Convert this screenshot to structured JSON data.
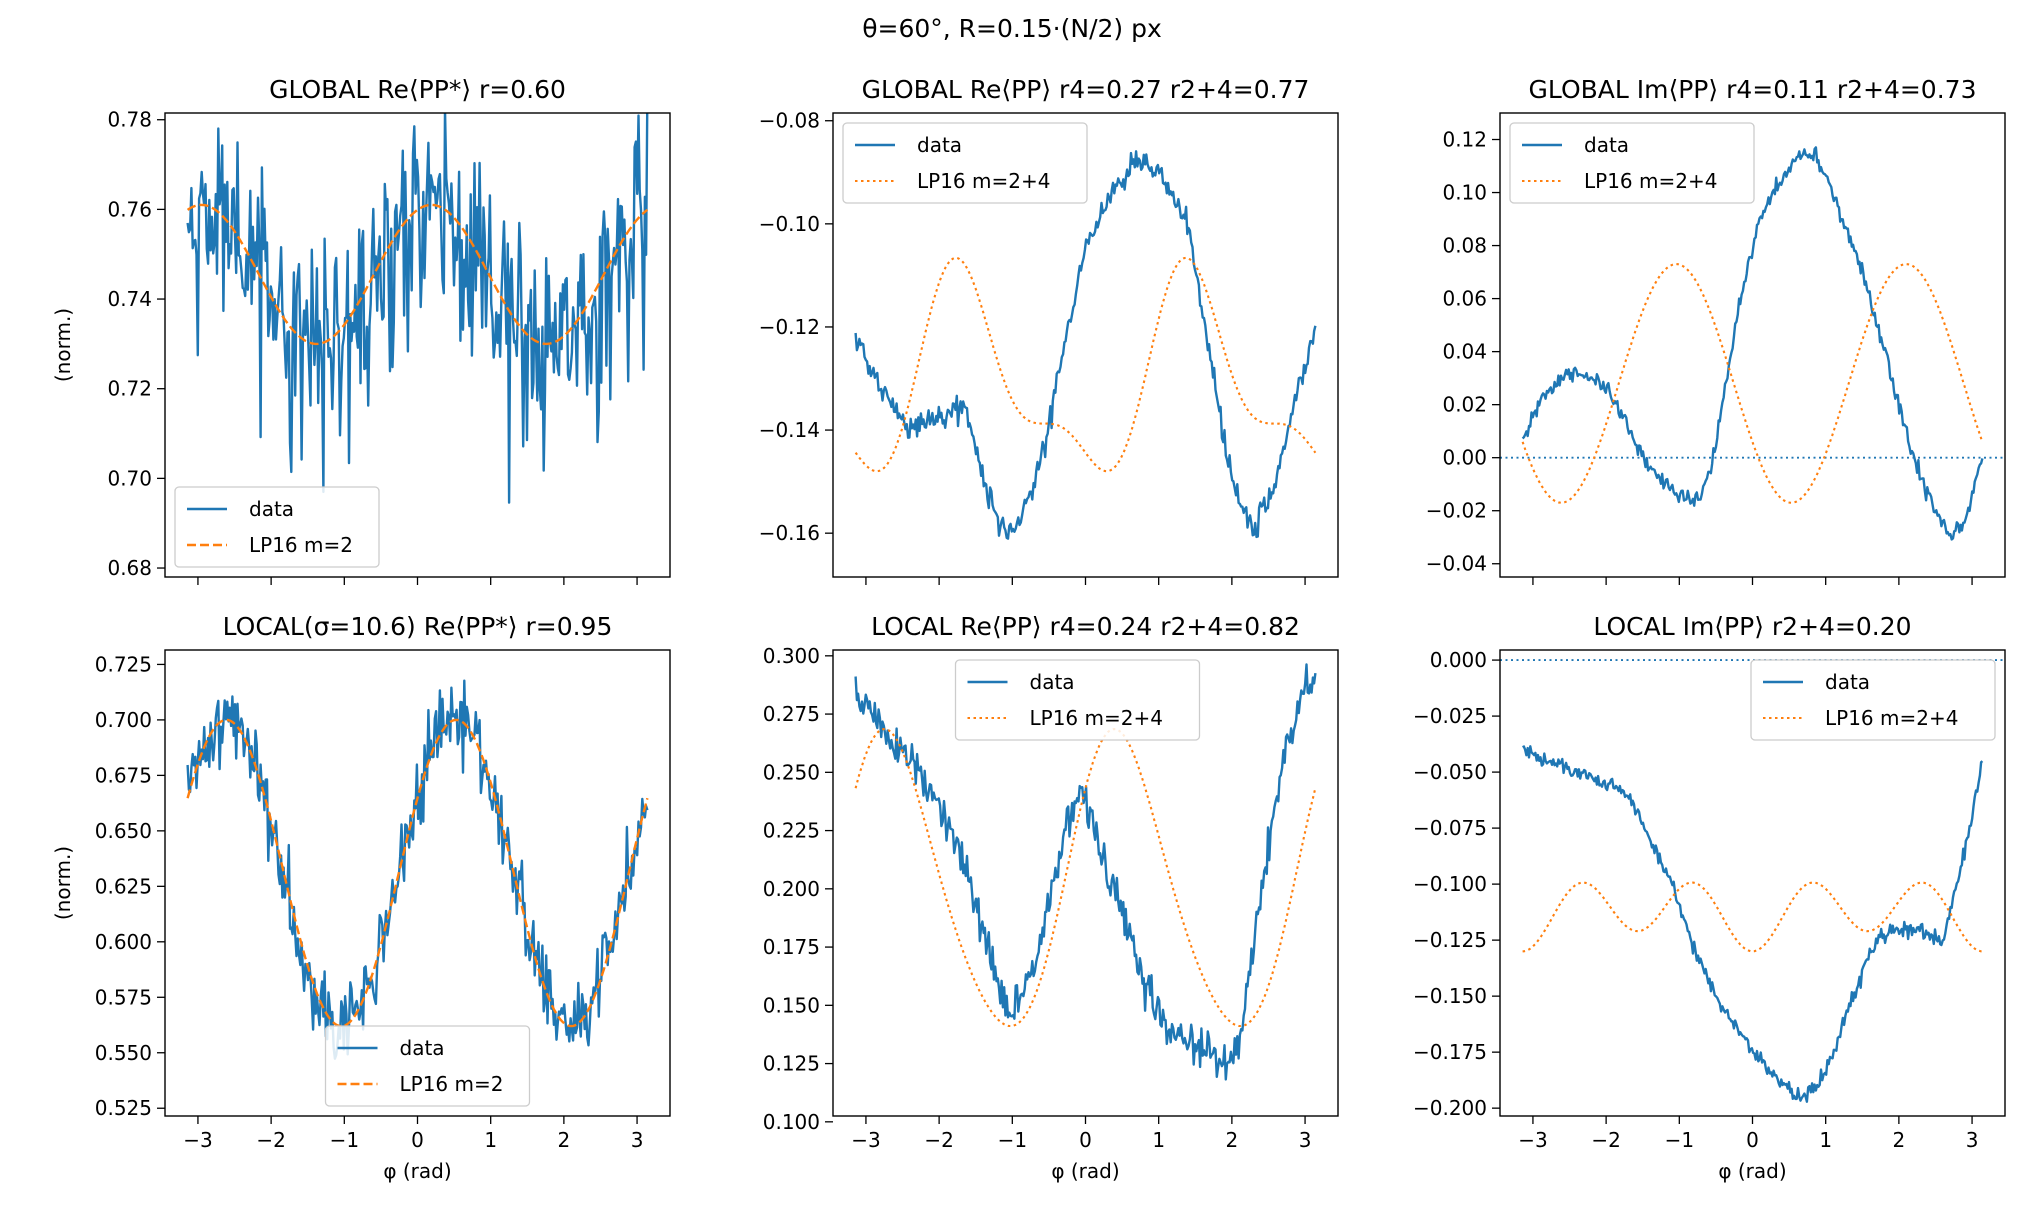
{
  "figure": {
    "suptitle": "θ=60°,  R=0.15·(N/2) px"
  },
  "colors": {
    "data": "#1f77b4",
    "fit": "#ff7f0e",
    "zero_line": "#1f77b4"
  },
  "chart_data": [
    {
      "type": "line",
      "title": "GLOBAL Re⟨PP*⟩  r=0.60",
      "xlabel": "",
      "ylabel": "(norm.)",
      "xlim": [
        -3.45,
        3.45
      ],
      "ylim": [
        0.678,
        0.7815
      ],
      "xticks": [
        -3,
        -2,
        -1,
        0,
        1,
        2,
        3
      ],
      "show_xticklabels": false,
      "yticks": [
        0.68,
        0.7,
        0.72,
        0.74,
        0.76,
        0.78
      ],
      "ytick_labels": [
        "0.68",
        "0.70",
        "0.72",
        "0.74",
        "0.76",
        "0.78"
      ],
      "legend": {
        "placement": "lower-left",
        "entries": [
          {
            "label": "data",
            "style": "solid"
          },
          {
            "label": "LP16 m=2",
            "style": "dashed"
          }
        ]
      },
      "zero_line": false,
      "series": [
        {
          "label": "data",
          "style": "solid",
          "gen": {
            "kind": "sum",
            "c": 0.7455,
            "terms": [
              [
                2,
                0.0155,
                0.19
              ]
            ],
            "noise": 0.0105,
            "spike_prob": 0.09,
            "spike_amp": -0.04,
            "seed": 11
          }
        },
        {
          "label": "LP16 m=2",
          "style": "dashed",
          "gen": {
            "kind": "sum",
            "c": 0.7455,
            "terms": [
              [
                2,
                0.0155,
                0.19
              ]
            ]
          }
        }
      ]
    },
    {
      "type": "line",
      "title": "GLOBAL Re⟨PP⟩  r4=0.27  r2+4=0.77",
      "xlabel": "",
      "ylabel": "",
      "xlim": [
        -3.45,
        3.45
      ],
      "ylim": [
        -0.1685,
        -0.0785
      ],
      "xticks": [
        -3,
        -2,
        -1,
        0,
        1,
        2,
        3
      ],
      "show_xticklabels": false,
      "yticks": [
        -0.16,
        -0.14,
        -0.12,
        -0.1,
        -0.08
      ],
      "ytick_labels": [
        "−0.16",
        "−0.14",
        "−0.12",
        "−0.10",
        "−0.08"
      ],
      "legend": {
        "placement": "upper-left",
        "entries": [
          {
            "label": "data",
            "style": "solid"
          },
          {
            "label": "LP16 m=2+4",
            "style": "dotted"
          }
        ]
      },
      "zero_line": false,
      "series": [
        {
          "label": "data",
          "style": "solid",
          "gen": {
            "kind": "pts",
            "x": [
              -3.14,
              -2.8,
              -2.4,
              -2.0,
              -1.65,
              -1.4,
              -1.1,
              -0.9,
              -0.6,
              -0.3,
              0.0,
              0.3,
              0.7,
              1.0,
              1.4,
              1.7,
              2.0,
              2.3,
              2.6,
              2.9,
              3.14
            ],
            "y": [
              -0.122,
              -0.132,
              -0.14,
              -0.137,
              -0.135,
              -0.15,
              -0.16,
              -0.158,
              -0.145,
              -0.125,
              -0.105,
              -0.095,
              -0.088,
              -0.09,
              -0.1,
              -0.125,
              -0.15,
              -0.16,
              -0.15,
              -0.132,
              -0.121
            ],
            "noise": 0.0012,
            "seed": 21
          }
        },
        {
          "label": "LP16 m=2+4",
          "style": "dotted",
          "gen": {
            "kind": "sum",
            "c": -0.131,
            "terms": [
              [
                2,
                -0.0175,
                -0.095
              ],
              [
                4,
                0.0075,
                -0.26
              ]
            ]
          }
        }
      ]
    },
    {
      "type": "line",
      "title": "GLOBAL Im⟨PP⟩  r4=0.11  r2+4=0.73",
      "xlabel": "",
      "ylabel": "",
      "xlim": [
        -3.45,
        3.45
      ],
      "ylim": [
        -0.045,
        0.13
      ],
      "xticks": [
        -3,
        -2,
        -1,
        0,
        1,
        2,
        3
      ],
      "show_xticklabels": false,
      "yticks": [
        -0.04,
        -0.02,
        0.0,
        0.02,
        0.04,
        0.06,
        0.08,
        0.1,
        0.12
      ],
      "ytick_labels": [
        "−0.04",
        "−0.02",
        "0.00",
        "0.02",
        "0.04",
        "0.06",
        "0.08",
        "0.10",
        "0.12"
      ],
      "legend": {
        "placement": "upper-left",
        "entries": [
          {
            "label": "data",
            "style": "solid"
          },
          {
            "label": "LP16 m=2+4",
            "style": "dotted"
          }
        ]
      },
      "zero_line": true,
      "series": [
        {
          "label": "data",
          "style": "solid",
          "gen": {
            "kind": "pts",
            "x": [
              -3.14,
              -2.9,
              -2.6,
              -2.4,
              -2.15,
              -1.9,
              -1.5,
              -1.2,
              -0.9,
              -0.7,
              -0.5,
              -0.2,
              0.1,
              0.4,
              0.6,
              0.85,
              1.1,
              1.5,
              1.9,
              2.2,
              2.5,
              2.7,
              2.9,
              3.14
            ],
            "y": [
              0.005,
              0.022,
              0.03,
              0.032,
              0.03,
              0.022,
              0.0,
              -0.01,
              -0.015,
              -0.015,
              0.005,
              0.055,
              0.09,
              0.105,
              0.113,
              0.115,
              0.1,
              0.07,
              0.03,
              0.0,
              -0.02,
              -0.03,
              -0.025,
              0.0
            ],
            "noise": 0.0016,
            "seed": 31
          }
        },
        {
          "label": "LP16 m=2+4",
          "style": "dotted",
          "gen": {
            "kind": "sum",
            "c": 0.028,
            "terms": [
              [
                2,
                0.045,
                2.1
              ]
            ]
          }
        }
      ]
    },
    {
      "type": "line",
      "title": "LOCAL(σ=10.6) Re⟨PP*⟩  r=0.95",
      "xlabel": "φ (rad)",
      "ylabel": "(norm.)",
      "xlim": [
        -3.45,
        3.45
      ],
      "ylim": [
        0.5215,
        0.7315
      ],
      "xticks": [
        -3,
        -2,
        -1,
        0,
        1,
        2,
        3
      ],
      "show_xticklabels": true,
      "xtick_labels": [
        "−3",
        "−2",
        "−1",
        "0",
        "1",
        "2",
        "3"
      ],
      "yticks": [
        0.525,
        0.55,
        0.575,
        0.6,
        0.625,
        0.65,
        0.675,
        0.7,
        0.725
      ],
      "ytick_labels": [
        "0.525",
        "0.550",
        "0.575",
        "0.600",
        "0.625",
        "0.650",
        "0.675",
        "0.700",
        "0.725"
      ],
      "legend": {
        "placement": "lower-center",
        "entries": [
          {
            "label": "data",
            "style": "solid"
          },
          {
            "label": "LP16 m=2",
            "style": "dashed"
          }
        ]
      },
      "zero_line": false,
      "series": [
        {
          "label": "data",
          "style": "solid",
          "gen": {
            "kind": "sum",
            "c": 0.631,
            "terms": [
              [
                2,
                0.069,
                0.53
              ]
            ],
            "noise": 0.009,
            "seed": 41
          }
        },
        {
          "label": "LP16 m=2",
          "style": "dashed",
          "gen": {
            "kind": "sum",
            "c": 0.631,
            "terms": [
              [
                2,
                0.069,
                0.53
              ]
            ]
          }
        }
      ]
    },
    {
      "type": "line",
      "title": "LOCAL Re⟨PP⟩  r4=0.24  r2+4=0.82",
      "xlabel": "φ (rad)",
      "ylabel": "",
      "xlim": [
        -3.45,
        3.45
      ],
      "ylim": [
        0.1025,
        0.3025
      ],
      "xticks": [
        -3,
        -2,
        -1,
        0,
        1,
        2,
        3
      ],
      "show_xticklabels": true,
      "xtick_labels": [
        "−3",
        "−2",
        "−1",
        "0",
        "1",
        "2",
        "3"
      ],
      "yticks": [
        0.1,
        0.125,
        0.15,
        0.175,
        0.2,
        0.225,
        0.25,
        0.275,
        0.3
      ],
      "ytick_labels": [
        "0.100",
        "0.125",
        "0.150",
        "0.175",
        "0.200",
        "0.225",
        "0.250",
        "0.275",
        "0.300"
      ],
      "legend": {
        "placement": "upper-center",
        "entries": [
          {
            "label": "data",
            "style": "solid"
          },
          {
            "label": "LP16 m=2+4",
            "style": "dotted"
          }
        ]
      },
      "zero_line": false,
      "series": [
        {
          "label": "data",
          "style": "solid",
          "gen": {
            "kind": "pts",
            "x": [
              -3.14,
              -2.8,
              -2.4,
              -2.0,
              -1.6,
              -1.3,
              -1.05,
              -0.8,
              -0.55,
              -0.3,
              -0.05,
              0.2,
              0.5,
              0.8,
              1.1,
              1.4,
              1.7,
              1.95,
              2.15,
              2.4,
              2.7,
              3.0,
              3.14
            ],
            "y": [
              0.285,
              0.27,
              0.255,
              0.235,
              0.205,
              0.17,
              0.145,
              0.158,
              0.19,
              0.22,
              0.245,
              0.215,
              0.19,
              0.16,
              0.14,
              0.135,
              0.13,
              0.12,
              0.145,
              0.2,
              0.255,
              0.285,
              0.29
            ],
            "noise": 0.0045,
            "seed": 51
          }
        },
        {
          "label": "LP16 m=2+4",
          "style": "dotted",
          "gen": {
            "kind": "sum",
            "c": 0.2005,
            "terms": [
              [
                2,
                0.063,
                0.45
              ],
              [
                4,
                0.0065,
                0.25
              ]
            ]
          }
        }
      ]
    },
    {
      "type": "line",
      "title": "LOCAL Im⟨PP⟩  r2+4=0.20",
      "xlabel": "φ (rad)",
      "ylabel": "",
      "xlim": [
        -3.45,
        3.45
      ],
      "ylim": [
        -0.2035,
        0.0045
      ],
      "xticks": [
        -3,
        -2,
        -1,
        0,
        1,
        2,
        3
      ],
      "show_xticklabels": true,
      "xtick_labels": [
        "−3",
        "−2",
        "−1",
        "0",
        "1",
        "2",
        "3"
      ],
      "yticks": [
        -0.2,
        -0.175,
        -0.15,
        -0.125,
        -0.1,
        -0.075,
        -0.05,
        -0.025,
        0.0
      ],
      "ytick_labels": [
        "−0.200",
        "−0.175",
        "−0.150",
        "−0.125",
        "−0.100",
        "−0.075",
        "−0.050",
        "−0.025",
        "0.000"
      ],
      "legend": {
        "placement": "upper-right",
        "entries": [
          {
            "label": "data",
            "style": "solid"
          },
          {
            "label": "LP16 m=2+4",
            "style": "dotted"
          }
        ]
      },
      "zero_line": true,
      "series": [
        {
          "label": "data",
          "style": "solid",
          "gen": {
            "kind": "pts",
            "x": [
              -3.14,
              -2.8,
              -2.4,
              -2.0,
              -1.7,
              -1.4,
              -1.1,
              -0.8,
              -0.5,
              -0.2,
              0.1,
              0.4,
              0.65,
              0.9,
              1.1,
              1.3,
              1.5,
              1.7,
              2.0,
              2.3,
              2.6,
              2.8,
              3.0,
              3.14
            ],
            "y": [
              -0.04,
              -0.045,
              -0.05,
              -0.055,
              -0.06,
              -0.08,
              -0.1,
              -0.128,
              -0.15,
              -0.165,
              -0.178,
              -0.19,
              -0.195,
              -0.19,
              -0.175,
              -0.155,
              -0.14,
              -0.125,
              -0.12,
              -0.12,
              -0.125,
              -0.1,
              -0.07,
              -0.045
            ],
            "noise": 0.0018,
            "seed": 61
          }
        },
        {
          "label": "LP16 m=2+4",
          "style": "dotted",
          "gen": {
            "kind": "sum",
            "c": -0.1125,
            "terms": [
              [
                2,
                -0.0045,
                0.0
              ],
              [
                4,
                -0.013,
                0.0
              ]
            ]
          }
        }
      ]
    }
  ]
}
